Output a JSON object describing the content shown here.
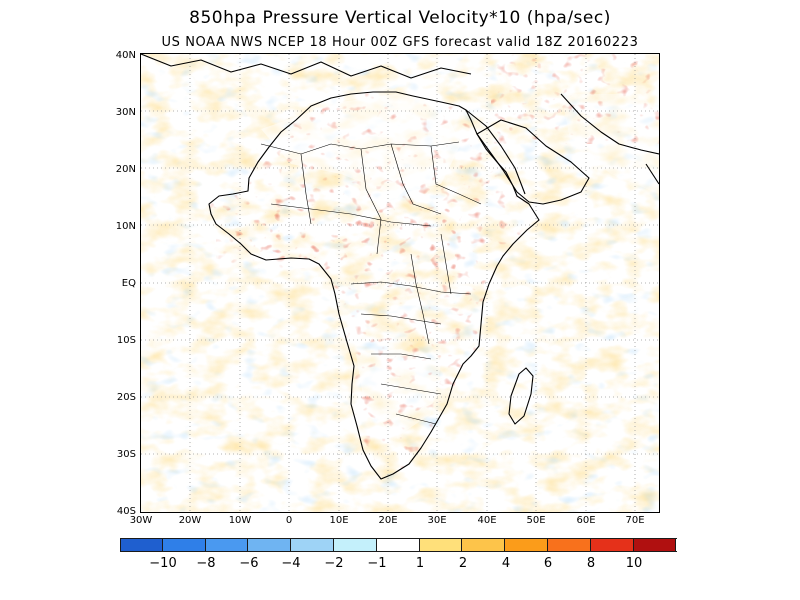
{
  "header": {
    "title": "850hpa Pressure Vertical Velocity*10 (hpa/sec)",
    "subtitle": "US NOAA NWS NCEP 18 Hour 00Z GFS forecast valid 18Z 20160223"
  },
  "map": {
    "lat_labels": [
      "40N",
      "30N",
      "20N",
      "10N",
      "EQ",
      "10S",
      "20S",
      "30S",
      "40S"
    ],
    "lon_labels": [
      "30W",
      "20W",
      "10W",
      "0",
      "10E",
      "20E",
      "30E",
      "40E",
      "50E",
      "60E",
      "70E"
    ]
  },
  "colorbar": {
    "colors": [
      "#1f5fcf",
      "#2f7fe8",
      "#4a99f0",
      "#6fb4f2",
      "#9ed3f6",
      "#c4f0fb",
      "#ffffff",
      "#ffe07a",
      "#fdc44a",
      "#fb9c1a",
      "#f8711c",
      "#e5311a",
      "#b01010"
    ],
    "labels": [
      "−10",
      "−8",
      "−6",
      "−4",
      "−2",
      "−1",
      "1",
      "2",
      "4",
      "6",
      "8",
      "10"
    ]
  }
}
